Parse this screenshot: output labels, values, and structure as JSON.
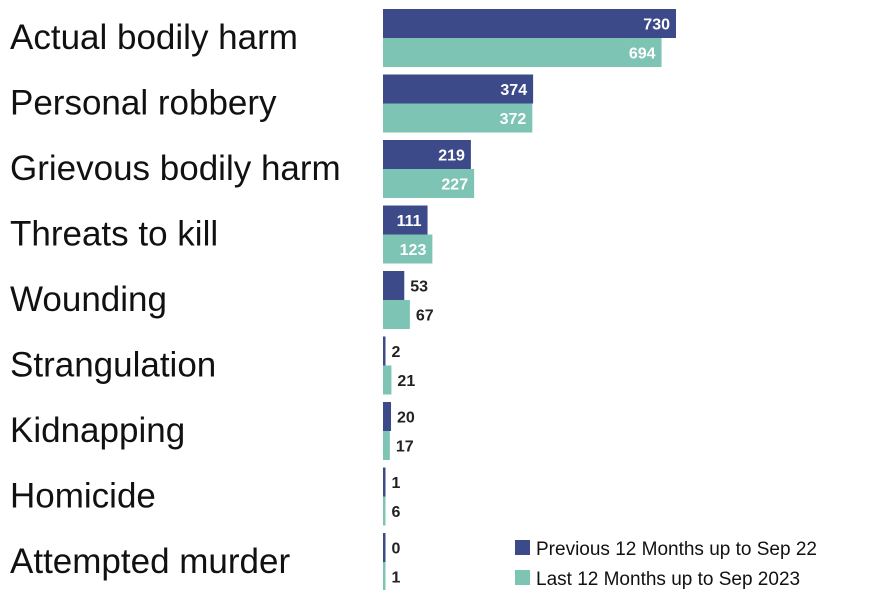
{
  "chart_data": {
    "type": "bar",
    "orientation": "horizontal",
    "categories": [
      "Actual bodily harm",
      "Personal robbery",
      "Grievous bodily harm",
      "Threats to kill",
      "Wounding",
      "Strangulation",
      "Kidnapping",
      "Homicide",
      "Attempted murder"
    ],
    "series": [
      {
        "name": "Previous 12 Months up to Sep 22",
        "color": "#3D4A8A",
        "values": [
          730,
          374,
          219,
          111,
          53,
          2,
          20,
          1,
          0
        ]
      },
      {
        "name": "Last 12 Months up to Sep 2023",
        "color": "#7DC4B4",
        "values": [
          694,
          372,
          227,
          123,
          67,
          21,
          17,
          6,
          1
        ]
      }
    ],
    "title": "",
    "xlabel": "",
    "ylabel": "",
    "grid": false,
    "axes_visible": false,
    "data_labels": true,
    "legend_position": "bottom-right"
  }
}
